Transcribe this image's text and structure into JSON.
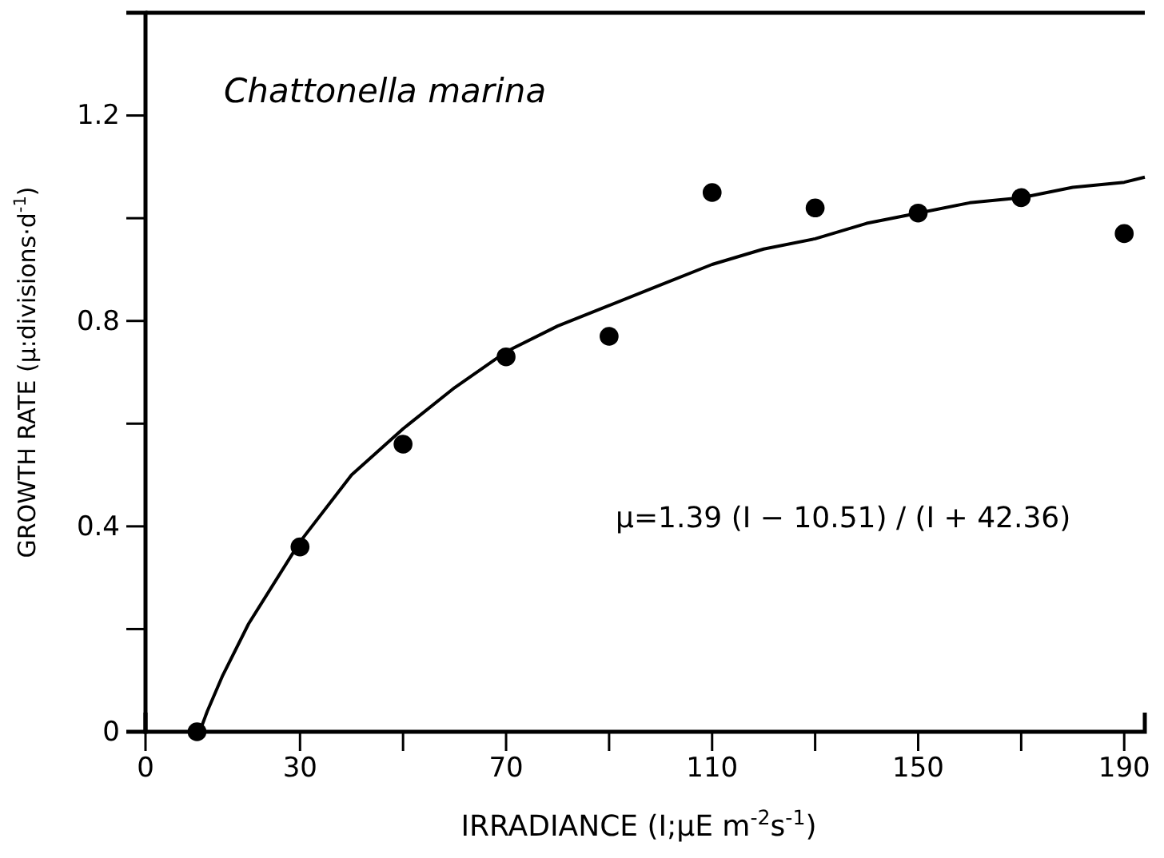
{
  "chart_data": {
    "type": "scatter",
    "title": "Chattonella marina",
    "xlabel": "IRRADIANCE (I;μE m$^{-2}$s$^{-1}$)",
    "ylabel": "GROWTH RATE (μ:divisions·d$^{-1}$)",
    "xlim": [
      0,
      194
    ],
    "ylim": [
      0,
      1.4
    ],
    "xticks": [
      0,
      30,
      {
        "value": 50,
        "label": null
      },
      70,
      {
        "value": 90,
        "label": null
      },
      110,
      {
        "value": 130,
        "label": null
      },
      150,
      {
        "value": 170,
        "label": null
      },
      190
    ],
    "yticks": [
      0,
      {
        "value": 0.2,
        "label": null
      },
      0.4,
      {
        "value": 0.6,
        "label": null
      },
      0.8,
      {
        "value": 1.0,
        "label": null
      },
      1.2
    ],
    "grid": false,
    "annotations": [
      "μ=1.39 (I − 10.51) / (I + 42.36)"
    ],
    "series": [
      {
        "marker": "circle",
        "color": "#000000",
        "x": [
          10,
          30,
          50,
          70,
          90,
          110,
          130,
          150,
          170,
          190
        ],
        "values": [
          0,
          0.36,
          0.56,
          0.73,
          0.77,
          1.05,
          1.02,
          1.01,
          1.04,
          0.97
        ]
      },
      {
        "type": "line",
        "color": "#000000",
        "x": [
          10.51,
          12,
          15,
          20,
          30,
          40,
          50,
          60,
          70,
          80,
          90,
          100,
          110,
          120,
          130,
          140,
          150,
          160,
          170,
          180,
          190,
          194
        ],
        "values": [
          0,
          0.04,
          0.11,
          0.21,
          0.37,
          0.5,
          0.59,
          0.67,
          0.74,
          0.79,
          0.83,
          0.87,
          0.91,
          0.94,
          0.96,
          0.99,
          1.01,
          1.03,
          1.04,
          1.06,
          1.07,
          1.08
        ]
      }
    ]
  }
}
